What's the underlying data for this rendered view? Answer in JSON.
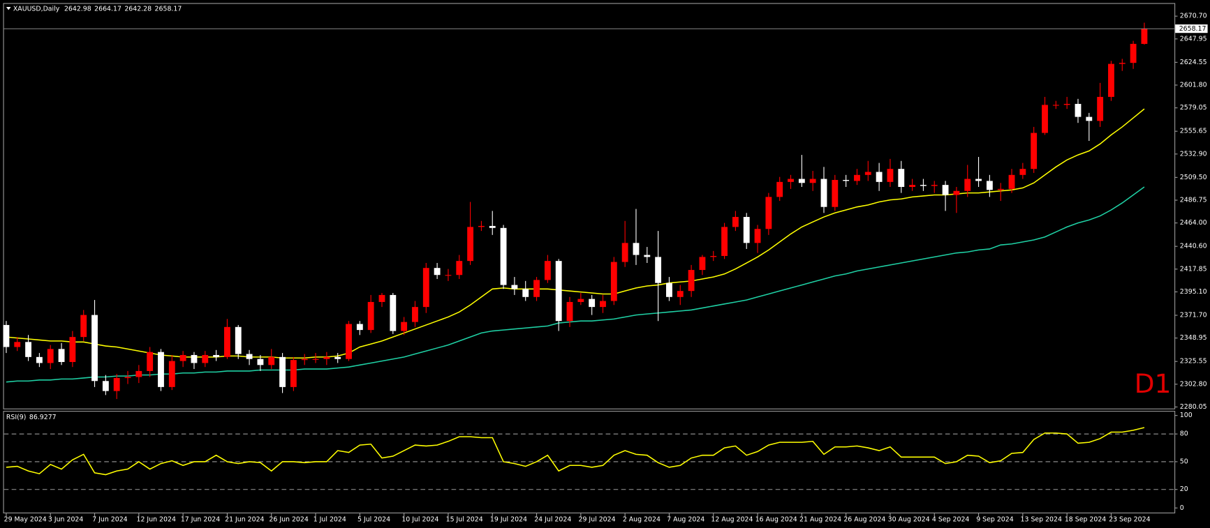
{
  "chart_data": [
    {
      "type": "candlestick",
      "symbol": "XAUUSD,Daily",
      "watermark": "D1",
      "up_color": "#ff0000",
      "down_color": "#ffffff",
      "ylim": [
        2278.5,
        2683.0
      ],
      "yticks": [
        {
          "value": 2670.7,
          "label": "2670.70"
        },
        2647.95,
        2624.55,
        {
          "value": 2601.8,
          "label": "2601.80"
        },
        2579.05,
        2555.65,
        {
          "value": 2532.9,
          "label": "2532.90"
        },
        {
          "value": 2509.5,
          "label": "2509.50"
        },
        2486.75,
        {
          "value": 2464,
          "label": "2464.00"
        },
        {
          "value": 2440.6,
          "label": "2440.60"
        },
        2417.85,
        {
          "value": 2395.1,
          "label": "2395.10"
        },
        {
          "value": 2371.7,
          "label": "2371.70"
        },
        2348.95,
        2325.55,
        {
          "value": 2302.8,
          "label": "2302.80"
        },
        2280.05
      ],
      "categories": [
        "29 May 2024",
        null,
        null,
        null,
        "3 Jun 2024",
        null,
        null,
        null,
        "7 Jun 2024",
        null,
        null,
        null,
        "12 Jun 2024",
        null,
        null,
        null,
        "17 Jun 2024",
        null,
        null,
        null,
        "21 Jun 2024",
        null,
        null,
        null,
        "26 Jun 2024",
        null,
        null,
        null,
        "1 Jul 2024",
        null,
        null,
        null,
        "5 Jul 2024",
        null,
        null,
        null,
        "10 Jul 2024",
        null,
        null,
        null,
        "15 Jul 2024",
        null,
        null,
        null,
        "19 Jul 2024",
        null,
        null,
        null,
        "24 Jul 2024",
        null,
        null,
        null,
        "29 Jul 2024",
        null,
        null,
        null,
        "2 Aug 2024",
        null,
        null,
        null,
        "7 Aug 2024",
        null,
        null,
        null,
        "12 Aug 2024",
        null,
        null,
        null,
        "16 Aug 2024",
        null,
        null,
        null,
        "21 Aug 2024",
        null,
        null,
        null,
        "26 Aug 2024",
        null,
        null,
        null,
        "30 Aug 2024",
        null,
        null,
        null,
        "4 Sep 2024",
        null,
        null,
        null,
        "9 Sep 2024",
        null,
        null,
        null,
        "13 Sep 2024",
        null,
        null,
        null,
        "18 Sep 2024",
        null,
        null,
        null,
        "23 Sep 2024",
        null,
        null,
        null
      ],
      "ohlc": [
        [
          2362,
          2366,
          2334,
          2340
        ],
        [
          2340,
          2350,
          2336,
          2345
        ],
        [
          2345,
          2352,
          2326,
          2330
        ],
        [
          2330,
          2334,
          2320,
          2324
        ],
        [
          2324,
          2342,
          2318,
          2338
        ],
        [
          2338,
          2344,
          2322,
          2325
        ],
        [
          2325,
          2356,
          2320,
          2350
        ],
        [
          2350,
          2377,
          2346,
          2372
        ],
        [
          2372,
          2387,
          2300,
          2306
        ],
        [
          2306,
          2312,
          2292,
          2296
        ],
        [
          2296,
          2313,
          2288,
          2309
        ],
        [
          2309,
          2316,
          2303,
          2310
        ],
        [
          2310,
          2322,
          2304,
          2316
        ],
        [
          2316,
          2340,
          2310,
          2335
        ],
        [
          2335,
          2338,
          2296,
          2300
        ],
        [
          2300,
          2332,
          2297,
          2326
        ],
        [
          2326,
          2336,
          2320,
          2332
        ],
        [
          2332,
          2335,
          2318,
          2324
        ],
        [
          2324,
          2336,
          2320,
          2332
        ],
        [
          2332,
          2337,
          2326,
          2330
        ],
        [
          2330,
          2368,
          2328,
          2360
        ],
        [
          2360,
          2362,
          2328,
          2333
        ],
        [
          2333,
          2337,
          2322,
          2328
        ],
        [
          2328,
          2332,
          2316,
          2322
        ],
        [
          2322,
          2338,
          2318,
          2330
        ],
        [
          2330,
          2334,
          2294,
          2300
        ],
        [
          2300,
          2330,
          2296,
          2327
        ],
        [
          2327,
          2333,
          2322,
          2328
        ],
        [
          2328,
          2334,
          2324,
          2328
        ],
        [
          2328,
          2335,
          2322,
          2330
        ],
        [
          2330,
          2334,
          2324,
          2328
        ],
        [
          2328,
          2366,
          2326,
          2363
        ],
        [
          2363,
          2366,
          2352,
          2357
        ],
        [
          2357,
          2392,
          2354,
          2385
        ],
        [
          2385,
          2394,
          2380,
          2392
        ],
        [
          2392,
          2394,
          2353,
          2356
        ],
        [
          2356,
          2370,
          2352,
          2365
        ],
        [
          2365,
          2386,
          2360,
          2380
        ],
        [
          2380,
          2424,
          2374,
          2419
        ],
        [
          2419,
          2424,
          2408,
          2412
        ],
        [
          2412,
          2418,
          2406,
          2412
        ],
        [
          2412,
          2432,
          2408,
          2426
        ],
        [
          2426,
          2485,
          2422,
          2460
        ],
        [
          2460,
          2466,
          2456,
          2461
        ],
        [
          2461,
          2476,
          2452,
          2459
        ],
        [
          2459,
          2462,
          2398,
          2402
        ],
        [
          2402,
          2410,
          2392,
          2398
        ],
        [
          2398,
          2406,
          2386,
          2390
        ],
        [
          2390,
          2410,
          2386,
          2407
        ],
        [
          2407,
          2432,
          2404,
          2426
        ],
        [
          2426,
          2428,
          2356,
          2366
        ],
        [
          2366,
          2390,
          2360,
          2385
        ],
        [
          2385,
          2394,
          2382,
          2388
        ],
        [
          2388,
          2392,
          2372,
          2380
        ],
        [
          2380,
          2392,
          2374,
          2386
        ],
        [
          2386,
          2430,
          2382,
          2425
        ],
        [
          2425,
          2466,
          2420,
          2444
        ],
        [
          2444,
          2478,
          2422,
          2432
        ],
        [
          2432,
          2440,
          2424,
          2430
        ],
        [
          2430,
          2456,
          2366,
          2404
        ],
        [
          2404,
          2410,
          2386,
          2390
        ],
        [
          2390,
          2402,
          2382,
          2396
        ],
        [
          2396,
          2422,
          2390,
          2417
        ],
        [
          2417,
          2432,
          2412,
          2430
        ],
        [
          2430,
          2436,
          2426,
          2431
        ],
        [
          2431,
          2464,
          2428,
          2460
        ],
        [
          2460,
          2476,
          2456,
          2470
        ],
        [
          2470,
          2474,
          2438,
          2444
        ],
        [
          2444,
          2462,
          2434,
          2458
        ],
        [
          2458,
          2494,
          2452,
          2490
        ],
        [
          2490,
          2510,
          2486,
          2505
        ],
        [
          2505,
          2512,
          2498,
          2508
        ],
        [
          2508,
          2532,
          2500,
          2504
        ],
        [
          2504,
          2516,
          2496,
          2508
        ],
        [
          2508,
          2520,
          2474,
          2480
        ],
        [
          2480,
          2512,
          2476,
          2507
        ],
        [
          2507,
          2512,
          2500,
          2506
        ],
        [
          2506,
          2518,
          2502,
          2512
        ],
        [
          2512,
          2526,
          2506,
          2515
        ],
        [
          2515,
          2524,
          2496,
          2505
        ],
        [
          2505,
          2528,
          2500,
          2518
        ],
        [
          2518,
          2526,
          2494,
          2500
        ],
        [
          2500,
          2508,
          2496,
          2502
        ],
        [
          2502,
          2508,
          2496,
          2501
        ],
        [
          2501,
          2506,
          2494,
          2502
        ],
        [
          2502,
          2506,
          2476,
          2492
        ],
        [
          2492,
          2500,
          2474,
          2496
        ],
        [
          2496,
          2522,
          2490,
          2508
        ],
        [
          2508,
          2530,
          2500,
          2506
        ],
        [
          2506,
          2512,
          2490,
          2497
        ],
        [
          2497,
          2504,
          2486,
          2498
        ],
        [
          2498,
          2518,
          2494,
          2512
        ],
        [
          2512,
          2524,
          2508,
          2518
        ],
        [
          2518,
          2560,
          2514,
          2554
        ],
        [
          2554,
          2590,
          2552,
          2582
        ],
        [
          2582,
          2586,
          2578,
          2582
        ],
        [
          2582,
          2590,
          2578,
          2583
        ],
        [
          2583,
          2588,
          2564,
          2570
        ],
        [
          2570,
          2574,
          2546,
          2566
        ],
        [
          2566,
          2604,
          2560,
          2590
        ],
        [
          2590,
          2626,
          2586,
          2623
        ],
        [
          2623,
          2628,
          2616,
          2624
        ],
        [
          2624,
          2646,
          2618,
          2643
        ],
        [
          2642.98,
          2664.17,
          2642.28,
          2658.17
        ]
      ],
      "series": [
        {
          "color": "#ffff00",
          "values": [
            2350,
            2349,
            2348,
            2347,
            2346,
            2346,
            2345,
            2345,
            2343,
            2341,
            2340,
            2338,
            2336,
            2334,
            2332,
            2331,
            2330,
            2330,
            2330,
            2330,
            2331,
            2331,
            2330,
            2330,
            2330,
            2329,
            2329,
            2329,
            2330,
            2330,
            2331,
            2334,
            2340,
            2343,
            2346,
            2350,
            2354,
            2358,
            2362,
            2366,
            2370,
            2375,
            2382,
            2390,
            2398,
            2399,
            2398,
            2398,
            2398,
            2398,
            2397,
            2396,
            2395,
            2394,
            2393,
            2393,
            2396,
            2399,
            2401,
            2402,
            2404,
            2405,
            2406,
            2408,
            2410,
            2413,
            2418,
            2424,
            2430,
            2437,
            2445,
            2453,
            2460,
            2465,
            2470,
            2474,
            2477,
            2480,
            2482,
            2485,
            2487,
            2488,
            2490,
            2491,
            2492,
            2492,
            2493,
            2494,
            2494,
            2495,
            2496,
            2497,
            2499,
            2504,
            2512,
            2520,
            2527,
            2532,
            2536,
            2543,
            2552,
            2560,
            2569,
            2578
          ]
        },
        {
          "color": "#1fd1a5",
          "values": [
            2305,
            2306,
            2306,
            2307,
            2307,
            2308,
            2308,
            2309,
            2310,
            2310,
            2311,
            2311,
            2312,
            2312,
            2313,
            2313,
            2314,
            2314,
            2315,
            2315,
            2316,
            2316,
            2316,
            2317,
            2317,
            2317,
            2317,
            2318,
            2318,
            2318,
            2319,
            2320,
            2322,
            2324,
            2326,
            2328,
            2330,
            2333,
            2336,
            2339,
            2342,
            2346,
            2350,
            2354,
            2356,
            2357,
            2358,
            2359,
            2360,
            2361,
            2364,
            2365,
            2366,
            2366,
            2367,
            2368,
            2370,
            2372,
            2373,
            2374,
            2375,
            2376,
            2377,
            2379,
            2381,
            2383,
            2385,
            2387,
            2390,
            2393,
            2396,
            2399,
            2402,
            2405,
            2408,
            2411,
            2413,
            2416,
            2418,
            2420,
            2422,
            2424,
            2426,
            2428,
            2430,
            2432,
            2434,
            2435,
            2437,
            2438,
            2442,
            2443,
            2445,
            2447,
            2450,
            2455,
            2460,
            2464,
            2467,
            2471,
            2477,
            2484,
            2492,
            2500
          ]
        }
      ]
    },
    {
      "type": "line",
      "title": "RSI(9)",
      "ylim": [
        -5,
        105
      ],
      "yticks": [
        0,
        20,
        50,
        80,
        100
      ],
      "levels": [
        20,
        50,
        80
      ],
      "series": [
        {
          "color": "#ffff00",
          "values": [
            44,
            45,
            40,
            37,
            47,
            42,
            52,
            58,
            38,
            36,
            40,
            42,
            50,
            42,
            48,
            51,
            46,
            50,
            50,
            57,
            50,
            48,
            50,
            49,
            40,
            50,
            50,
            49,
            50,
            50,
            62,
            60,
            68,
            69,
            54,
            56,
            62,
            68,
            67,
            68,
            72,
            77,
            77,
            76,
            76,
            50,
            48,
            45,
            50,
            57,
            40,
            46,
            46,
            44,
            46,
            57,
            62,
            58,
            57,
            49,
            44,
            46,
            54,
            57,
            57,
            65,
            67,
            57,
            61,
            68,
            71,
            71,
            71,
            72,
            58,
            66,
            66,
            67,
            65,
            62,
            66,
            55,
            55,
            55,
            55,
            48,
            50,
            57,
            56,
            49,
            51,
            59,
            60,
            74,
            81,
            81,
            80,
            70,
            71,
            75,
            82,
            82,
            84,
            86.9277
          ]
        }
      ]
    }
  ]
}
